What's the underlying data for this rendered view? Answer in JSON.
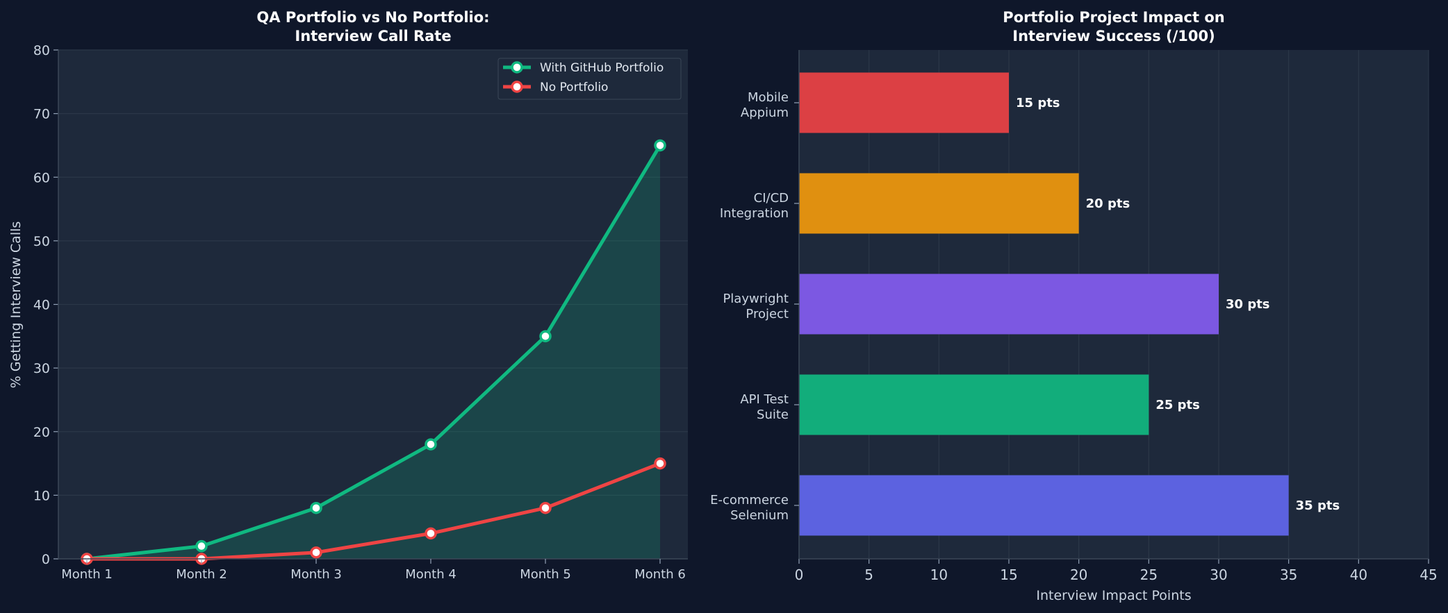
{
  "figure": {
    "background": "#0f172a",
    "panel_background": "#1e293b"
  },
  "chart_data": [
    {
      "type": "line",
      "title": [
        "QA Portfolio vs No Portfolio:",
        "Interview Call Rate"
      ],
      "xlabel": "",
      "ylabel": "% Getting Interview Calls",
      "categories": [
        "Month 1",
        "Month 2",
        "Month 3",
        "Month 4",
        "Month 5",
        "Month 6"
      ],
      "ylim": [
        0,
        80
      ],
      "yticks": [
        0,
        10,
        20,
        30,
        40,
        50,
        60,
        70,
        80
      ],
      "grid": "horizontal",
      "legend_position": "top-right",
      "series": [
        {
          "name": "With GitHub Portfolio",
          "values": [
            0,
            2,
            8,
            18,
            35,
            65
          ],
          "color": "#10b981",
          "fill_area": true
        },
        {
          "name": "No Portfolio",
          "values": [
            0,
            0,
            1,
            4,
            8,
            15
          ],
          "color": "#ef4444",
          "fill_area": false
        }
      ]
    },
    {
      "type": "bar",
      "orientation": "horizontal",
      "title": [
        "Portfolio Project Impact on",
        "Interview Success (/100)"
      ],
      "xlabel": "Interview Impact Points",
      "ylabel": "",
      "xlim": [
        0,
        45
      ],
      "xticks": [
        0,
        5,
        10,
        15,
        20,
        25,
        30,
        35,
        40,
        45
      ],
      "grid": "vertical",
      "value_suffix": " pts",
      "bars": [
        {
          "label": [
            "Mobile",
            "Appium"
          ],
          "value": 15,
          "color": "#dc4044"
        },
        {
          "label": [
            "CI/CD",
            "Integration"
          ],
          "value": 20,
          "color": "#e09010"
        },
        {
          "label": [
            "Playwright",
            "Project"
          ],
          "value": 30,
          "color": "#7c58e2"
        },
        {
          "label": [
            "API Test",
            "Suite"
          ],
          "value": 25,
          "color": "#12ad7b"
        },
        {
          "label": [
            "E-commerce",
            "Selenium"
          ],
          "value": 35,
          "color": "#5c62e0"
        }
      ]
    }
  ]
}
